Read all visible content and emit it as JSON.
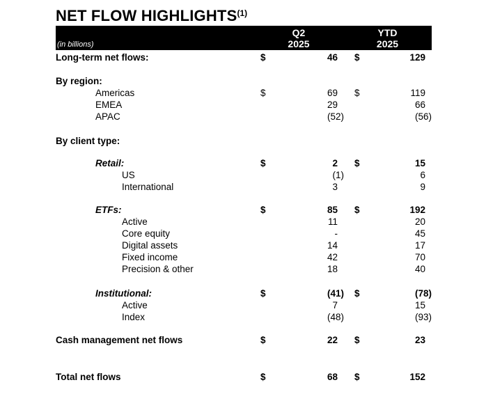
{
  "title": {
    "text": "NET FLOW HIGHLIGHTS",
    "superscript": "(1)"
  },
  "header": {
    "unit_label": "(in billions)",
    "columns": [
      {
        "line1": "Q2",
        "line2": "2025"
      },
      {
        "line1": "YTD",
        "line2": "2025"
      }
    ]
  },
  "colors": {
    "header_bg": "#000000",
    "header_text": "#ffffff",
    "body_text": "#000000",
    "page_bg": "#ffffff"
  },
  "rows": [
    {
      "label": "Long-term net flows:",
      "indent": 0,
      "style": "bold",
      "dollar": true,
      "values_bold": true,
      "q2": "46",
      "ytd": "129"
    },
    {
      "type": "spacer",
      "h": 17
    },
    {
      "label": "By region:",
      "indent": 0,
      "style": "bold",
      "q2": "",
      "ytd": ""
    },
    {
      "label": "Americas",
      "indent": 1,
      "dollar": true,
      "q2": "69",
      "ytd": "119"
    },
    {
      "label": "EMEA",
      "indent": 1,
      "q2": "29",
      "ytd": "66"
    },
    {
      "label": "APAC",
      "indent": 1,
      "q2": "(52)",
      "ytd": "(56)"
    },
    {
      "type": "spacer",
      "h": 18
    },
    {
      "label": "By client type:",
      "indent": 0,
      "style": "bold",
      "q2": "",
      "ytd": ""
    },
    {
      "type": "spacer",
      "h": 15
    },
    {
      "label": "Retail:",
      "indent": 1,
      "style": "bolditalic",
      "dollar": true,
      "values_bold": true,
      "q2": "2",
      "ytd": "15"
    },
    {
      "label": "US",
      "indent": 2,
      "q2": "(1)",
      "ytd": "6"
    },
    {
      "label": "International",
      "indent": 2,
      "q2": "3",
      "ytd": "9"
    },
    {
      "type": "spacer",
      "h": 16
    },
    {
      "label": "ETFs:",
      "indent": 1,
      "style": "bolditalic",
      "dollar": true,
      "values_bold": true,
      "q2": "85",
      "ytd": "192"
    },
    {
      "label": "Active",
      "indent": 2,
      "q2": "11",
      "ytd": "20"
    },
    {
      "label": "Core equity",
      "indent": 2,
      "q2": "-",
      "ytd": "45"
    },
    {
      "label": "Digital assets",
      "indent": 2,
      "q2": "14",
      "ytd": "17"
    },
    {
      "label": "Fixed income",
      "indent": 2,
      "q2": "42",
      "ytd": "70"
    },
    {
      "label": "Precision & other",
      "indent": 2,
      "q2": "18",
      "ytd": "40"
    },
    {
      "type": "spacer",
      "h": 18
    },
    {
      "label": "Institutional:",
      "indent": 1,
      "style": "bolditalic",
      "dollar": true,
      "values_bold": true,
      "q2": "(41)",
      "ytd": "(78)"
    },
    {
      "label": "Active",
      "indent": 2,
      "q2": "7",
      "ytd": "15"
    },
    {
      "label": "Index",
      "indent": 2,
      "q2": "(48)",
      "ytd": "(93)"
    },
    {
      "type": "spacer",
      "h": 16
    },
    {
      "label": "Cash management net flows",
      "indent": 0,
      "style": "bold",
      "dollar": true,
      "values_bold": true,
      "q2": "22",
      "ytd": "23"
    },
    {
      "type": "spacer",
      "h": 36
    },
    {
      "label": "Total net flows",
      "indent": 0,
      "style": "bold",
      "dollar": true,
      "values_bold": true,
      "q2": "68",
      "ytd": "152"
    }
  ]
}
